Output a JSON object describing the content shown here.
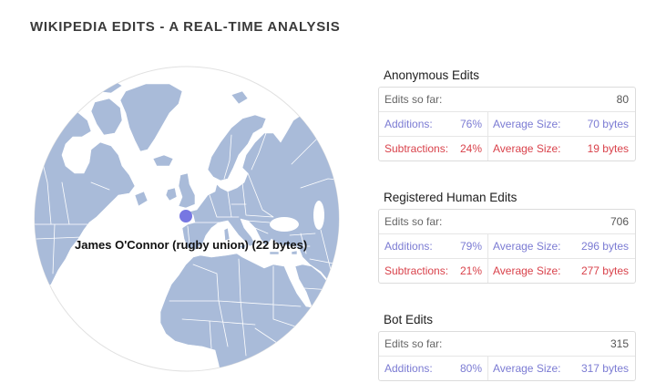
{
  "title": "WIKIPEDIA EDITS - A REAL-TIME ANALYSIS",
  "globe": {
    "latest_edit_label": "James O'Connor (rugby union) (22 bytes)"
  },
  "colors": {
    "additions": "#7b7bd3",
    "subtractions": "#d9424b",
    "land": "#a9bbd9",
    "marker": "#6b6be0"
  },
  "panels": [
    {
      "heading": "Anonymous Edits",
      "edits": {
        "label": "Edits so far:",
        "value": "80"
      },
      "additions": {
        "label": "Additions:",
        "percent": "76%",
        "avg_label": "Average Size:",
        "avg_size": "70 bytes"
      },
      "subtractions": {
        "label": "Subtractions:",
        "percent": "24%",
        "avg_label": "Average Size:",
        "avg_size": "19 bytes"
      }
    },
    {
      "heading": "Registered Human Edits",
      "edits": {
        "label": "Edits so far:",
        "value": "706"
      },
      "additions": {
        "label": "Additions:",
        "percent": "79%",
        "avg_label": "Average Size:",
        "avg_size": "296 bytes"
      },
      "subtractions": {
        "label": "Subtractions:",
        "percent": "21%",
        "avg_label": "Average Size:",
        "avg_size": "277 bytes"
      }
    },
    {
      "heading": "Bot Edits",
      "edits": {
        "label": "Edits so far:",
        "value": "315"
      },
      "additions": {
        "label": "Additions:",
        "percent": "80%",
        "avg_label": "Average Size:",
        "avg_size": "317 bytes"
      }
    }
  ]
}
